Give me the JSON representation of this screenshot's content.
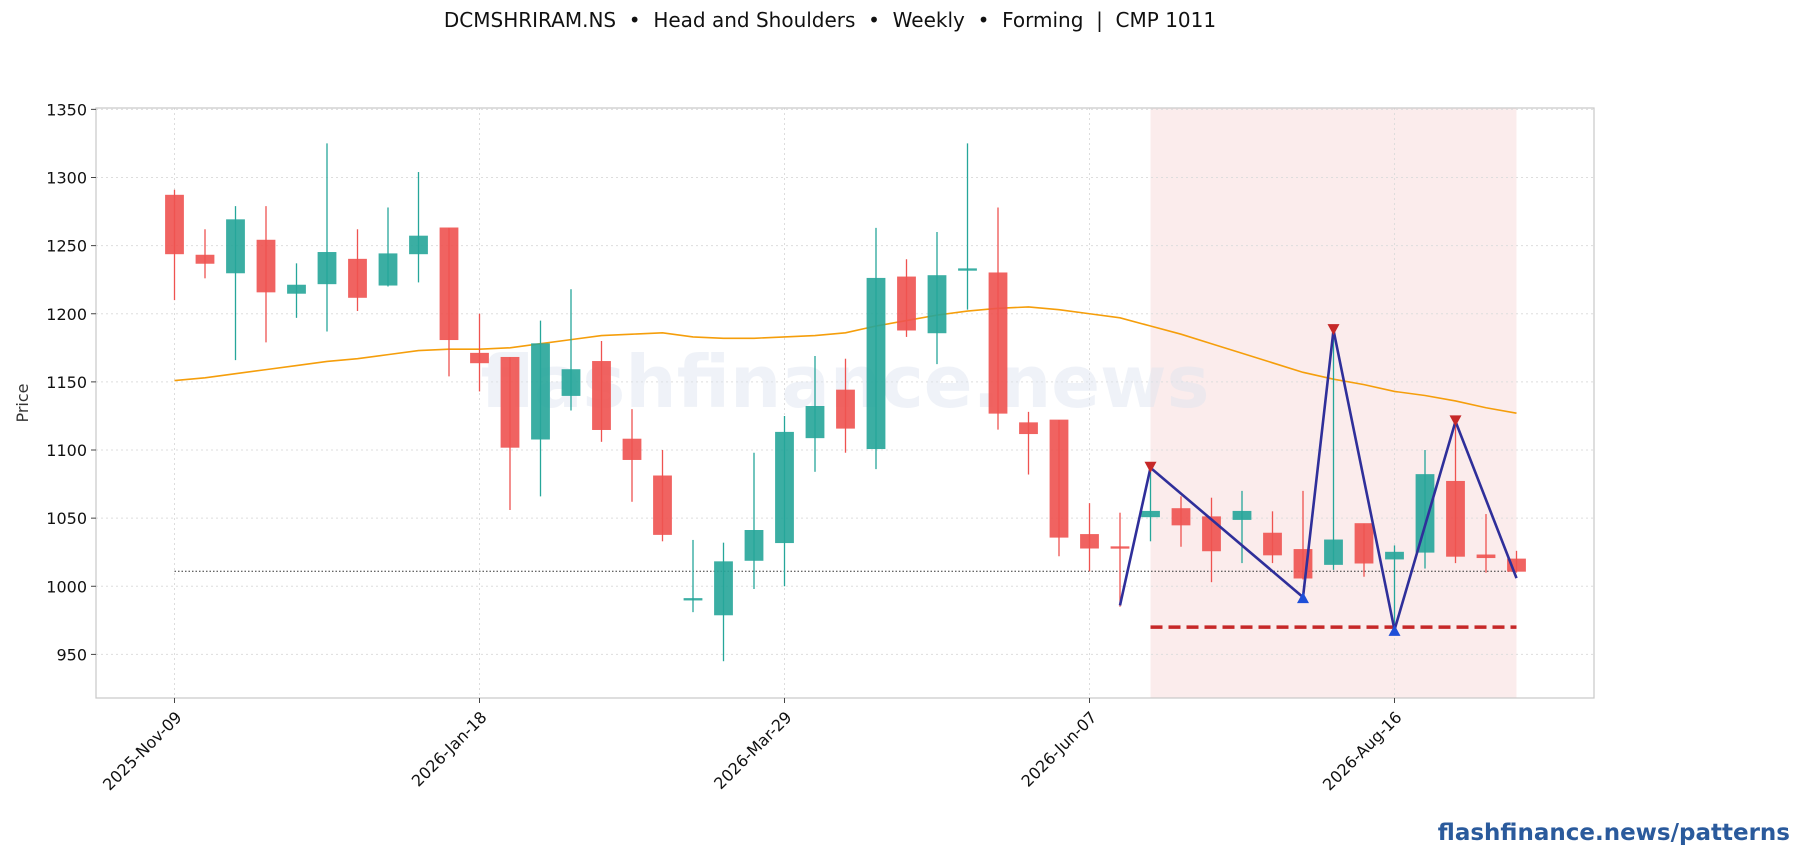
{
  "header": {
    "title": "DCMSHRIRAM.NS  •  Head and Shoulders  •  Weekly  •  Forming  |  CMP 1011"
  },
  "watermark": "flashfinance.news",
  "brand": "flashfinance.news/patterns",
  "colors": {
    "up": "#26a69a",
    "down": "#ef5350",
    "ma": "#f59e0b",
    "pattern_line": "#2f2f9a",
    "neckline": "#c62828",
    "peak_marker": "#c62828",
    "trough_marker": "#1e4fd8",
    "pattern_zone": "#f9e6e6"
  },
  "chart_data": {
    "type": "candlestick",
    "title": "DCMSHRIRAM.NS  •  Head and Shoulders  •  Weekly  •  Forming  |  CMP 1011",
    "ylabel": "Price",
    "xlabel": "",
    "ylim": [
      918,
      1351
    ],
    "yticks": [
      950,
      1000,
      1050,
      1100,
      1150,
      1200,
      1250,
      1300,
      1350
    ],
    "xticks": [
      "2025-Nov-09",
      "2026-Jan-18",
      "2026-Mar-29",
      "2026-Jun-07",
      "2026-Aug-16"
    ],
    "xtick_index": [
      0,
      10,
      20,
      30,
      40
    ],
    "grid": true,
    "candles": [
      {
        "date": "2025-Nov-09",
        "open": 1287,
        "high": 1291,
        "low": 1210,
        "close": 1244
      },
      {
        "date": "2025-Nov-16",
        "open": 1243,
        "high": 1262,
        "low": 1226,
        "close": 1237
      },
      {
        "date": "2025-Nov-23",
        "open": 1230,
        "high": 1279,
        "low": 1166,
        "close": 1269
      },
      {
        "date": "2025-Nov-30",
        "open": 1254,
        "high": 1279,
        "low": 1179,
        "close": 1216
      },
      {
        "date": "2025-Dec-07",
        "open": 1215,
        "high": 1237,
        "low": 1197,
        "close": 1221
      },
      {
        "date": "2025-Dec-14",
        "open": 1222,
        "high": 1325,
        "low": 1187,
        "close": 1245
      },
      {
        "date": "2025-Dec-21",
        "open": 1240,
        "high": 1262,
        "low": 1202,
        "close": 1212
      },
      {
        "date": "2025-Dec-28",
        "open": 1221,
        "high": 1278,
        "low": 1220,
        "close": 1244
      },
      {
        "date": "2026-Jan-04",
        "open": 1244,
        "high": 1304,
        "low": 1223,
        "close": 1257
      },
      {
        "date": "2026-Jan-11",
        "open": 1263,
        "high": 1263,
        "low": 1154,
        "close": 1181
      },
      {
        "date": "2026-Jan-18",
        "open": 1171,
        "high": 1200,
        "low": 1143,
        "close": 1164
      },
      {
        "date": "2026-Jan-25",
        "open": 1168,
        "high": 1168,
        "low": 1056,
        "close": 1102
      },
      {
        "date": "2026-Feb-01",
        "open": 1108,
        "high": 1195,
        "low": 1066,
        "close": 1178
      },
      {
        "date": "2026-Feb-08",
        "open": 1140,
        "high": 1218,
        "low": 1129,
        "close": 1159
      },
      {
        "date": "2026-Feb-15",
        "open": 1165,
        "high": 1180,
        "low": 1106,
        "close": 1115
      },
      {
        "date": "2026-Feb-22",
        "open": 1108,
        "high": 1130,
        "low": 1062,
        "close": 1093
      },
      {
        "date": "2026-Mar-01",
        "open": 1081,
        "high": 1100,
        "low": 1033,
        "close": 1038
      },
      {
        "date": "2026-Mar-08",
        "open": 991,
        "high": 1034,
        "low": 981,
        "close": 991
      },
      {
        "date": "2026-Mar-15",
        "open": 979,
        "high": 1032,
        "low": 945,
        "close": 1018
      },
      {
        "date": "2026-Mar-22",
        "open": 1019,
        "high": 1098,
        "low": 998,
        "close": 1041
      },
      {
        "date": "2026-Mar-29",
        "open": 1032,
        "high": 1125,
        "low": 1000,
        "close": 1113
      },
      {
        "date": "2026-Apr-05",
        "open": 1109,
        "high": 1169,
        "low": 1084,
        "close": 1132
      },
      {
        "date": "2026-Apr-12",
        "open": 1144,
        "high": 1167,
        "low": 1098,
        "close": 1116
      },
      {
        "date": "2026-Apr-19",
        "open": 1101,
        "high": 1263,
        "low": 1086,
        "close": 1226
      },
      {
        "date": "2026-Apr-26",
        "open": 1227,
        "high": 1240,
        "low": 1183,
        "close": 1188
      },
      {
        "date": "2026-May-03",
        "open": 1186,
        "high": 1260,
        "low": 1163,
        "close": 1228
      },
      {
        "date": "2026-May-10",
        "open": 1232,
        "high": 1325,
        "low": 1203,
        "close": 1233
      },
      {
        "date": "2026-May-17",
        "open": 1230,
        "high": 1278,
        "low": 1115,
        "close": 1127
      },
      {
        "date": "2026-May-24",
        "open": 1120,
        "high": 1128,
        "low": 1082,
        "close": 1112
      },
      {
        "date": "2026-May-31",
        "open": 1122,
        "high": 1122,
        "low": 1022,
        "close": 1036
      },
      {
        "date": "2026-Jun-07",
        "open": 1038,
        "high": 1061,
        "low": 1011,
        "close": 1028
      },
      {
        "date": "2026-Jun-14",
        "open": 1029,
        "high": 1054,
        "low": 985,
        "close": 1028
      },
      {
        "date": "2026-Jun-21",
        "open": 1051,
        "high": 1090,
        "low": 1033,
        "close": 1055
      },
      {
        "date": "2026-Jun-28",
        "open": 1057,
        "high": 1066,
        "low": 1029,
        "close": 1045
      },
      {
        "date": "2026-Jul-05",
        "open": 1051,
        "high": 1065,
        "low": 1003,
        "close": 1026
      },
      {
        "date": "2026-Jul-12",
        "open": 1049,
        "high": 1070,
        "low": 1017,
        "close": 1055
      },
      {
        "date": "2026-Jul-19",
        "open": 1039,
        "high": 1055,
        "low": 1017,
        "close": 1023
      },
      {
        "date": "2026-Jul-26",
        "open": 1027,
        "high": 1070,
        "low": 1005,
        "close": 1006
      },
      {
        "date": "2026-Aug-02",
        "open": 1016,
        "high": 1190,
        "low": 1012,
        "close": 1034
      },
      {
        "date": "2026-Aug-09",
        "open": 1046,
        "high": 1046,
        "low": 1007,
        "close": 1017
      },
      {
        "date": "2026-Aug-16",
        "open": 1020,
        "high": 1030,
        "low": 968,
        "close": 1025
      },
      {
        "date": "2026-Aug-23",
        "open": 1025,
        "high": 1100,
        "low": 1013,
        "close": 1082
      },
      {
        "date": "2026-Aug-30",
        "open": 1077,
        "high": 1124,
        "low": 1017,
        "close": 1022
      },
      {
        "date": "2026-Sep-06",
        "open": 1023,
        "high": 1053,
        "low": 1010,
        "close": 1021
      },
      {
        "date": "2026-Sep-13",
        "open": 1020,
        "high": 1026,
        "low": 1010,
        "close": 1011
      }
    ],
    "moving_average": [
      1151,
      1153,
      1156,
      1159,
      1162,
      1165,
      1167,
      1170,
      1173,
      1174,
      1174,
      1175,
      1178,
      1181,
      1184,
      1185,
      1186,
      1183,
      1182,
      1182,
      1183,
      1184,
      1186,
      1191,
      1195,
      1199,
      1202,
      1204,
      1205,
      1203,
      1200,
      1197,
      1191,
      1185,
      1178,
      1171,
      1164,
      1157,
      1152,
      1148,
      1143,
      1140,
      1136,
      1131,
      1127
    ],
    "cmp_line": 1011,
    "neckline": {
      "value": 970,
      "from_index": 32,
      "to_index": 44
    },
    "pattern_zone": {
      "from_index": 32,
      "to_index": 44
    },
    "pattern_points": [
      {
        "index": 31,
        "value": 986,
        "marker": "none"
      },
      {
        "index": 32,
        "value": 1087,
        "marker": "peak"
      },
      {
        "index": 37,
        "value": 992,
        "marker": "trough"
      },
      {
        "index": 38,
        "value": 1188,
        "marker": "peak"
      },
      {
        "index": 40,
        "value": 968,
        "marker": "trough"
      },
      {
        "index": 42,
        "value": 1121,
        "marker": "peak"
      },
      {
        "index": 44,
        "value": 1006,
        "marker": "none"
      }
    ]
  }
}
